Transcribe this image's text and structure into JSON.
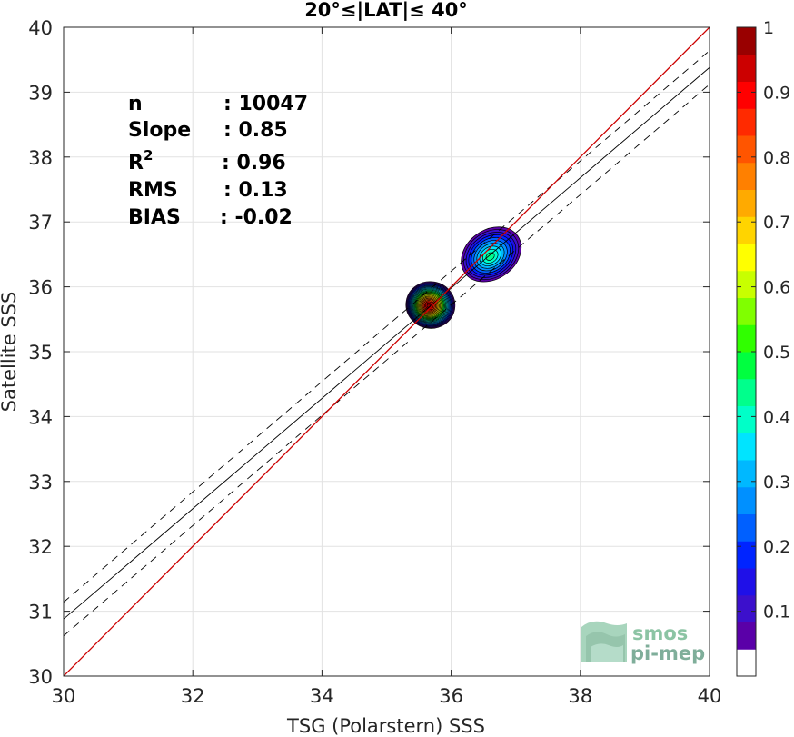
{
  "chart_data": {
    "type": "contour",
    "title": "20°≤|LAT|≤ 40°",
    "xlabel": "TSG (Polarstern) SSS",
    "ylabel": "Satellite SSS",
    "xlim": [
      30,
      40
    ],
    "ylim": [
      30,
      40
    ],
    "xticks": [
      "30",
      "32",
      "34",
      "36",
      "38",
      "40"
    ],
    "yticks": [
      "30",
      "31",
      "32",
      "33",
      "34",
      "35",
      "36",
      "37",
      "38",
      "39",
      "40"
    ],
    "grid": true,
    "stats": [
      {
        "key": "n",
        "value": ": 10047"
      },
      {
        "key": "Slope",
        "value": ": 0.85"
      },
      {
        "key": "R",
        "sup": "2",
        "value": ": 0.96"
      },
      {
        "key": "RMS",
        "value": ": 0.13"
      },
      {
        "key": "BIAS",
        "value": ": -0.02"
      }
    ],
    "identity_line": {
      "from": [
        30,
        30
      ],
      "to": [
        40,
        40
      ],
      "color": "#cc0000"
    },
    "regression_line": {
      "slope": 0.85,
      "intercept": 5.38
    },
    "confidence_offset": 0.26,
    "density_clusters": [
      {
        "center": [
          35.68,
          35.72
        ],
        "radius": [
          0.38,
          0.36
        ],
        "rotation": 10,
        "peak": 1.0
      },
      {
        "center": [
          36.62,
          36.5
        ],
        "radius": [
          0.5,
          0.38
        ],
        "rotation": -35,
        "peak": 0.45
      }
    ],
    "colorbar": {
      "ticks": [
        "0.1",
        "0.2",
        "0.3",
        "0.4",
        "0.5",
        "0.6",
        "0.7",
        "0.8",
        "0.9",
        "1"
      ],
      "tick_values": [
        0.1,
        0.2,
        0.3,
        0.4,
        0.5,
        0.6,
        0.7,
        0.8,
        0.9,
        1.0
      ],
      "colors": [
        "#ffffff",
        "#5a00a8",
        "#3c10cc",
        "#1f10e8",
        "#0024ff",
        "#0060ff",
        "#0090ff",
        "#00b8ff",
        "#00e4ff",
        "#00ffc8",
        "#00ff8c",
        "#00ff40",
        "#30ff00",
        "#80ff00",
        "#c8ff00",
        "#ffff00",
        "#ffd400",
        "#ffaa00",
        "#ff8000",
        "#ff5500",
        "#ff2a00",
        "#ff0000",
        "#cc0000",
        "#990000"
      ]
    }
  },
  "logo": {
    "line1": "smos",
    "line2": "pi-mep"
  }
}
